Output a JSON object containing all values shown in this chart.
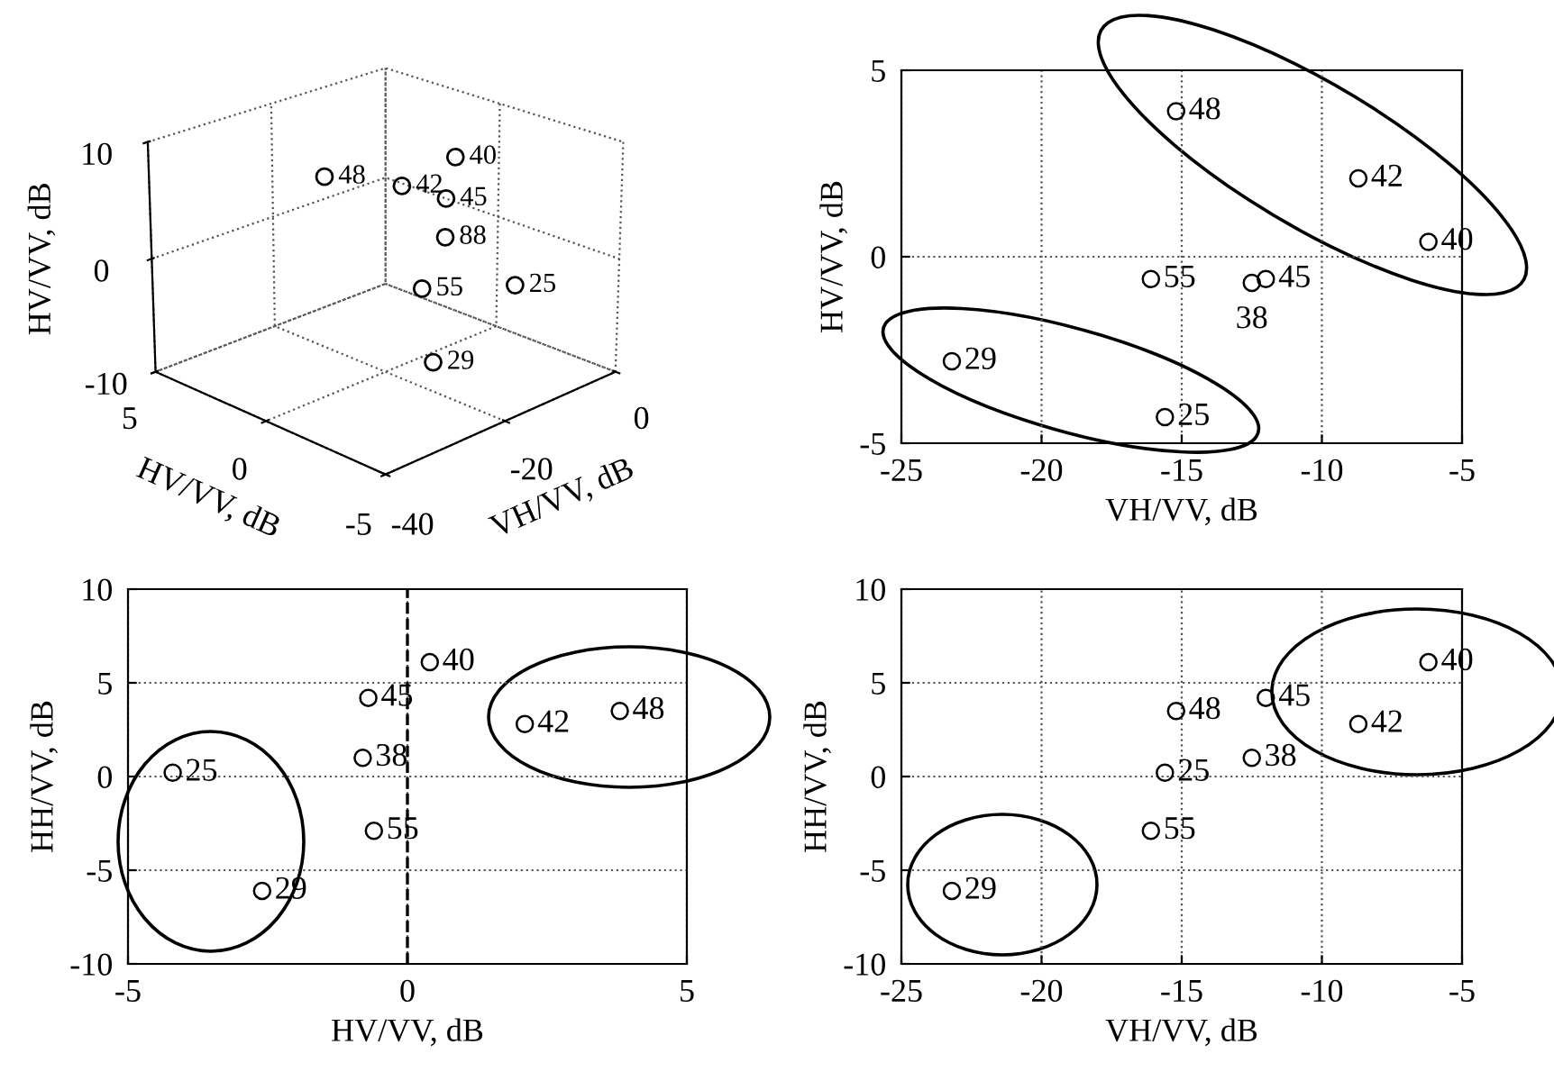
{
  "chart_data": [
    {
      "type": "other",
      "annotations": [
        "10",
        "0",
        "-10",
        "HV/VV, dB",
        "5",
        "0",
        "-5",
        "HV/VV, dB",
        "0",
        "-20",
        "-40",
        "VH/VV, dB",
        "48",
        "42",
        "40",
        "55",
        "45",
        "88",
        "29",
        "25"
      ]
    },
    {
      "type": "scatter",
      "xlabel": "VH/VV, dB",
      "ylabel": "HV/VV, dB",
      "xlim": [
        -25,
        -5
      ],
      "xticks": [
        -25,
        -20,
        -15,
        -10,
        -5
      ],
      "ylim": [
        -5,
        5
      ],
      "yticks": [
        -5,
        0,
        5
      ],
      "grid": true,
      "marker": "circle",
      "series": [
        {
          "color": "#000000",
          "x": [
            -15.2,
            -8.7,
            -6.2,
            -16.1,
            -12.0,
            -12.5,
            -23.2,
            -15.6
          ],
          "values": [
            3.9,
            2.1,
            0.4,
            -0.6,
            -0.6,
            -0.7,
            -2.8,
            -4.3
          ]
        }
      ],
      "annotations": [
        {
          "text": "48",
          "x": -15.2,
          "y": 3.9
        },
        {
          "text": "42",
          "x": -8.7,
          "y": 2.1
        },
        {
          "text": "40",
          "x": -6.2,
          "y": 0.4
        },
        {
          "text": "55",
          "x": -16.1,
          "y": -0.6
        },
        {
          "text": "45",
          "x": -12.0,
          "y": -0.6
        },
        {
          "text": "38",
          "x": -12.5,
          "y": -0.7
        },
        {
          "text": "29",
          "x": -23.2,
          "y": -2.8
        },
        {
          "text": "25",
          "x": -15.6,
          "y": -4.3
        }
      ]
    },
    {
      "type": "scatter",
      "xlabel": "HV/VV, dB",
      "ylabel": "HH/VV, dB",
      "xlim": [
        -5,
        5
      ],
      "xticks": [
        -5,
        0,
        5
      ],
      "ylim": [
        -10,
        10
      ],
      "yticks": [
        -10,
        -5,
        0,
        5,
        10
      ],
      "grid": true,
      "marker": "circle",
      "ref_lines": [
        {
          "axis": "x",
          "value": 0,
          "line_style": "dashed",
          "color": "#000000"
        }
      ],
      "series": [
        {
          "color": "#000000",
          "x": [
            3.8,
            2.1,
            0.4,
            -0.6,
            -0.7,
            -0.8,
            -2.6,
            -4.2
          ],
          "values": [
            3.5,
            2.8,
            6.1,
            -2.9,
            4.2,
            1.0,
            -6.1,
            0.2
          ]
        }
      ],
      "annotations": [
        {
          "text": "48",
          "x": 3.8,
          "y": 3.5
        },
        {
          "text": "42",
          "x": 2.1,
          "y": 2.8
        },
        {
          "text": "40",
          "x": 0.4,
          "y": 6.1
        },
        {
          "text": "55",
          "x": -0.6,
          "y": -2.9
        },
        {
          "text": "45",
          "x": -0.7,
          "y": 4.2
        },
        {
          "text": "38",
          "x": -0.8,
          "y": 1.0
        },
        {
          "text": "29",
          "x": -2.6,
          "y": -6.1
        },
        {
          "text": "25",
          "x": -4.2,
          "y": 0.2
        }
      ]
    },
    {
      "type": "scatter",
      "xlabel": "VH/VV, dB",
      "ylabel": "HH/VV, dB",
      "xlim": [
        -25,
        -5
      ],
      "xticks": [
        -25,
        -20,
        -15,
        -10,
        -5
      ],
      "ylim": [
        -10,
        10
      ],
      "yticks": [
        -10,
        -5,
        0,
        5,
        10
      ],
      "grid": true,
      "marker": "circle",
      "series": [
        {
          "color": "#000000",
          "x": [
            -15.2,
            -8.7,
            -6.2,
            -16.1,
            -12.0,
            -12.5,
            -23.2,
            -15.6
          ],
          "values": [
            3.5,
            2.8,
            6.1,
            -2.9,
            4.2,
            1.0,
            -6.1,
            0.2
          ]
        }
      ],
      "annotations": [
        {
          "text": "48",
          "x": -15.2,
          "y": 3.5
        },
        {
          "text": "42",
          "x": -8.7,
          "y": 2.8
        },
        {
          "text": "40",
          "x": -6.2,
          "y": 6.1
        },
        {
          "text": "55",
          "x": -16.1,
          "y": -2.9
        },
        {
          "text": "45",
          "x": -12.0,
          "y": 4.2
        },
        {
          "text": "38",
          "x": -12.5,
          "y": 1.0
        },
        {
          "text": "29",
          "x": -23.2,
          "y": -6.1
        },
        {
          "text": "25",
          "x": -15.6,
          "y": 0.2
        }
      ]
    }
  ]
}
